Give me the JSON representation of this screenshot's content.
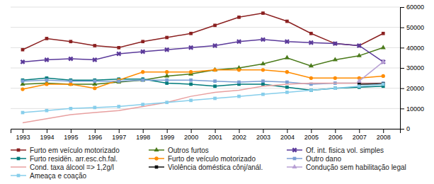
{
  "chart_data": {
    "type": "line",
    "x": [
      1993,
      1994,
      1995,
      1996,
      1997,
      1998,
      1999,
      2000,
      2001,
      2002,
      2003,
      2004,
      2005,
      2006,
      2007,
      2008
    ],
    "xlim": [
      1992.5,
      2008.7
    ],
    "xticks": [
      1993,
      1994,
      1995,
      1996,
      1997,
      1998,
      1999,
      2000,
      2001,
      2002,
      2003,
      2004,
      2005,
      2006,
      2007,
      2008
    ],
    "ylim": [
      0,
      60000
    ],
    "yticks": [
      0,
      10000,
      20000,
      30000,
      40000,
      50000,
      60000
    ],
    "grid": true,
    "legend": "bottom",
    "series": [
      {
        "name": "Furto em veículo motorizado",
        "color": "#8B2020",
        "marker": "square",
        "values": [
          39000,
          44500,
          43000,
          41000,
          40000,
          43000,
          45000,
          47000,
          51000,
          55000,
          57000,
          53000,
          47000,
          42000,
          41000,
          47000
        ]
      },
      {
        "name": "Outros furtos",
        "color": "#4A7A1A",
        "marker": "triangle",
        "values": [
          22000,
          22500,
          22000,
          22000,
          23000,
          24000,
          26000,
          27000,
          29000,
          30000,
          32000,
          35000,
          31000,
          34000,
          36000,
          40000
        ]
      },
      {
        "name": "Of. int. fisica vol. simples",
        "color": "#5B3A9A",
        "marker": "x",
        "values": [
          33000,
          34000,
          34500,
          34000,
          37000,
          38000,
          39000,
          40000,
          41000,
          43000,
          44000,
          43000,
          42500,
          42000,
          41000,
          33000
        ]
      },
      {
        "name": "Furto residën. arr.esc.ch.fal.",
        "color": "#007B7B",
        "marker": "square",
        "values": [
          24000,
          25000,
          24000,
          24000,
          24500,
          24500,
          22500,
          22000,
          21000,
          22000,
          22000,
          20500,
          19000,
          20000,
          20500,
          21000
        ]
      },
      {
        "name": "Furto de veículo motorizado",
        "color": "#FF8C00",
        "marker": "circle",
        "values": [
          19500,
          22000,
          22000,
          20000,
          24000,
          28000,
          28000,
          28000,
          29000,
          29000,
          29000,
          28000,
          25000,
          25000,
          25000,
          26000
        ]
      },
      {
        "name": "Outro dano",
        "color": "#7B9FD4",
        "marker": "square",
        "values": [
          23500,
          24000,
          23500,
          23500,
          23500,
          24000,
          24000,
          24000,
          23500,
          23000,
          23500,
          23000,
          22000,
          22500,
          22500,
          22500
        ]
      },
      {
        "name": "Cond. taxa álcool => 1,2g/l",
        "color": "#E8A0A0",
        "marker": "none",
        "values": [
          3000,
          5000,
          7000,
          8000,
          9000,
          11000,
          13000,
          16000,
          18000,
          19000,
          21000,
          22000,
          22500,
          22500,
          22500,
          22500
        ]
      },
      {
        "name": "Violência doméstica cônj/anál.",
        "color": "#111111",
        "marker": "square",
        "values": [
          null,
          null,
          null,
          null,
          null,
          null,
          null,
          null,
          null,
          null,
          null,
          null,
          null,
          null,
          22000,
          22200
        ]
      },
      {
        "name": "Condução sem habilitação legal",
        "color": "#B8A0D4",
        "marker": "triangle",
        "values": [
          null,
          null,
          null,
          null,
          null,
          null,
          null,
          null,
          null,
          null,
          null,
          null,
          null,
          null,
          23500,
          33000
        ]
      },
      {
        "name": "Ameaça e coação",
        "color": "#87CEEB",
        "marker": "square",
        "values": [
          8000,
          9000,
          10000,
          10500,
          11000,
          12000,
          13000,
          14000,
          15000,
          16000,
          17000,
          18000,
          19000,
          20000,
          21000,
          22000
        ]
      }
    ]
  }
}
